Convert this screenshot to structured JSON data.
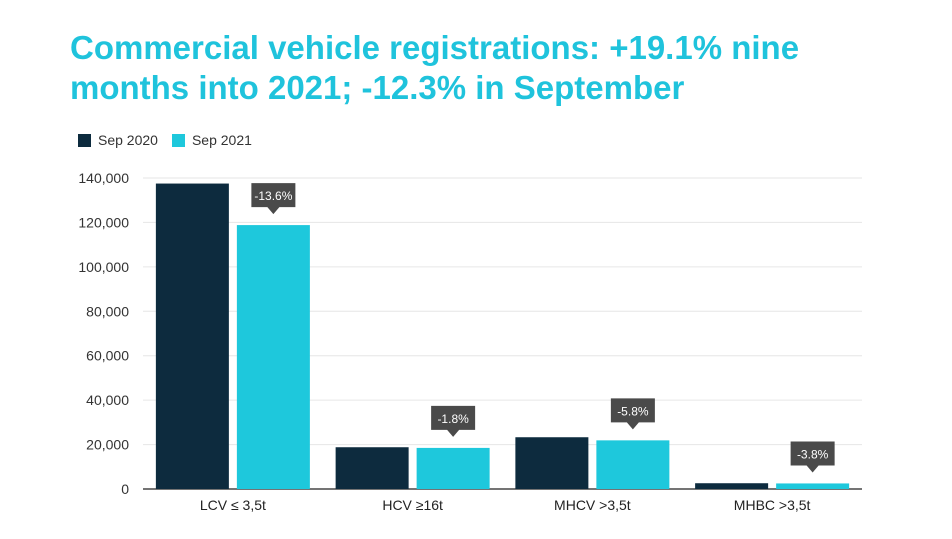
{
  "title": {
    "line1": "Commercial vehicle registrations: +19.1% nine",
    "line2": "months into 2021; -12.3% in September"
  },
  "colors": {
    "title": "#1fc3dc",
    "series_2020": "#0d2b3e",
    "series_2021": "#1ec8dc",
    "callout": "#4a4a4a",
    "grid": "#e6e6e6"
  },
  "chart_data": {
    "type": "bar",
    "categories": [
      "LCV ≤ 3,5t",
      "HCV ≥16t",
      "MHCV >3,5t",
      "MHBC >3,5t"
    ],
    "series": [
      {
        "name": "Sep 2020",
        "values": [
          137500,
          18800,
          23300,
          2600
        ]
      },
      {
        "name": "Sep 2021",
        "values": [
          118800,
          18500,
          21900,
          2500
        ]
      }
    ],
    "annotations": [
      "-13.6%",
      "-1.8%",
      "-5.8%",
      "-3.8%"
    ],
    "yticks": [
      "140,000",
      "120,000",
      "100,000",
      "80,000",
      "60,000",
      "40,000",
      "20,000",
      "0"
    ],
    "ylim": [
      0,
      140000
    ],
    "grid": true,
    "legend": "top-left"
  }
}
